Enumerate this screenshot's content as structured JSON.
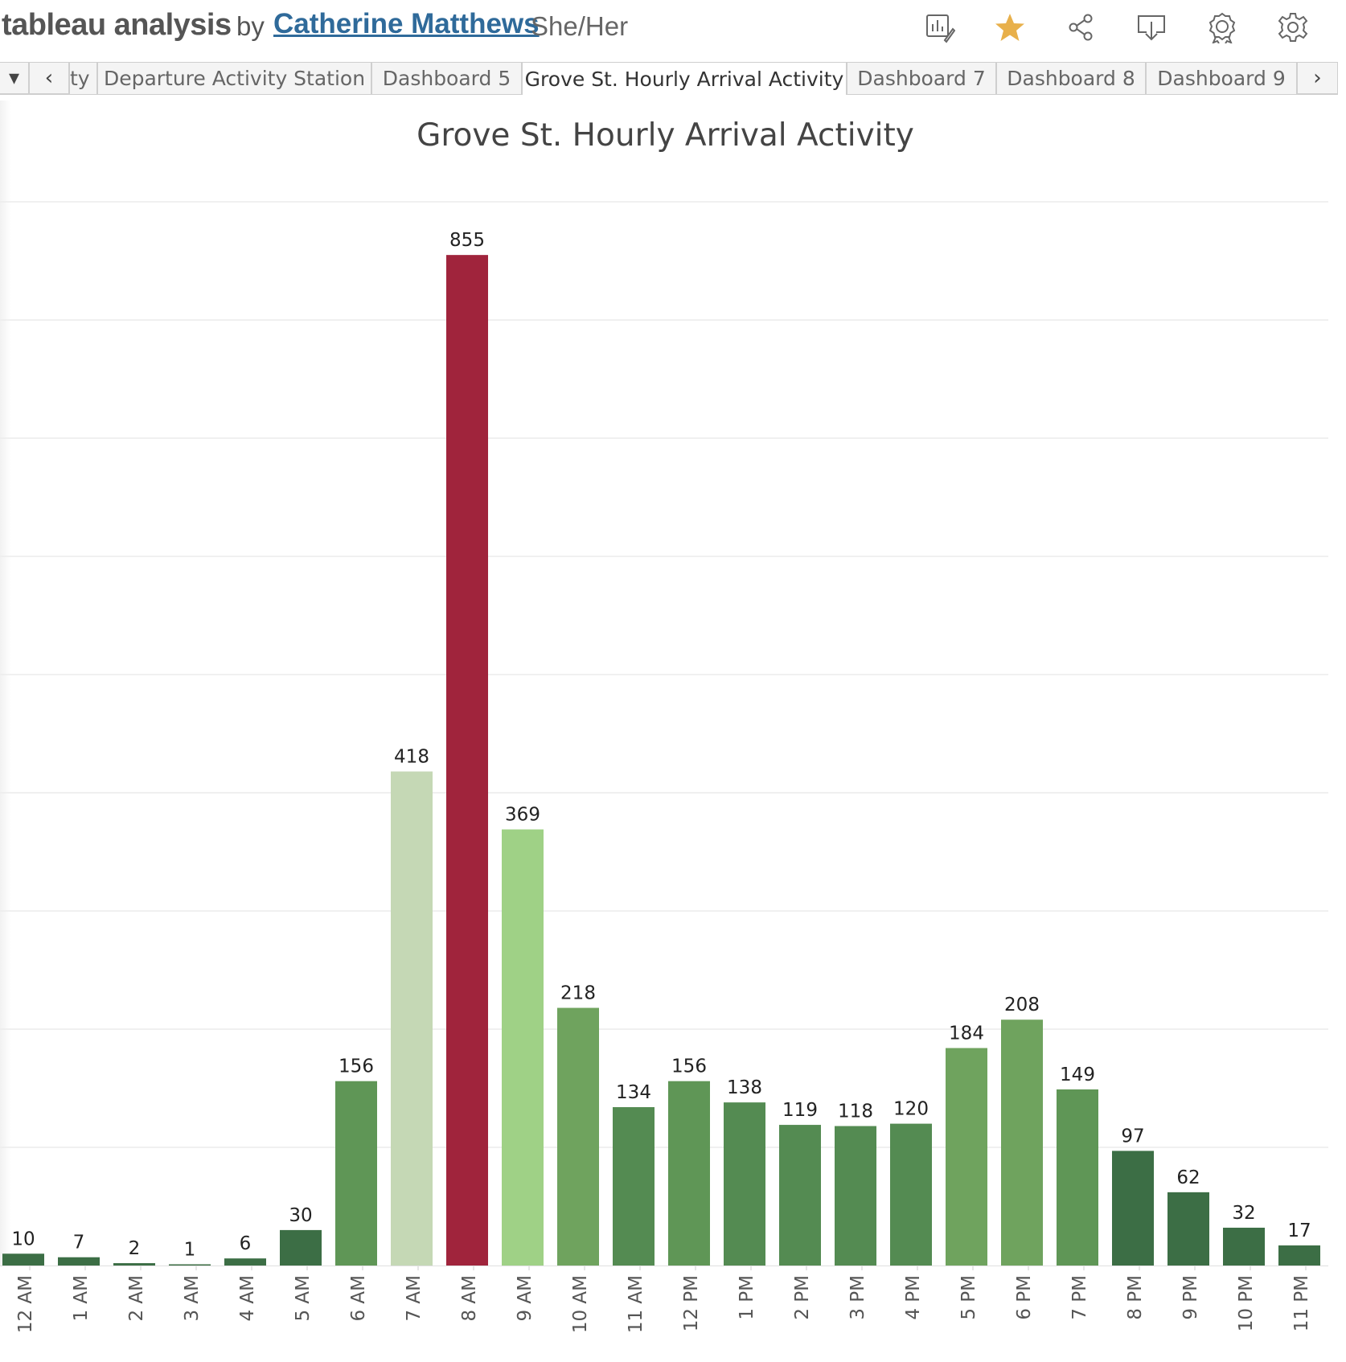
{
  "header": {
    "workbook_title": "tableau analysis",
    "by_label": "by",
    "author": "Catherine Matthews",
    "pronouns": "She/Her",
    "icons": [
      {
        "name": "edit-chart-icon"
      },
      {
        "name": "favorite-star-icon",
        "color": "#e8b04b"
      },
      {
        "name": "share-icon"
      },
      {
        "name": "download-icon"
      },
      {
        "name": "award-icon"
      },
      {
        "name": "settings-gear-icon"
      }
    ]
  },
  "tabs": {
    "items": [
      {
        "label": "ty",
        "active": false
      },
      {
        "label": "Departure Activity Station",
        "active": false
      },
      {
        "label": "Dashboard 5",
        "active": false
      },
      {
        "label": "Grove St. Hourly Arrival Activity",
        "active": true
      },
      {
        "label": "Dashboard 7",
        "active": false
      },
      {
        "label": "Dashboard 8",
        "active": false
      },
      {
        "label": "Dashboard 9",
        "active": false
      }
    ],
    "controls": {
      "menu": "▾",
      "prev": "‹",
      "next": "›"
    }
  },
  "chart_data": {
    "type": "bar",
    "title": "Grove St. Hourly Arrival Activity",
    "xlabel": "",
    "ylabel": "",
    "ylim": [
      0,
      900
    ],
    "grid": true,
    "categories": [
      "12 AM",
      "1 AM",
      "2 AM",
      "3 AM",
      "4 AM",
      "5 AM",
      "6 AM",
      "7 AM",
      "8 AM",
      "9 AM",
      "10 AM",
      "11 AM",
      "12 PM",
      "1 PM",
      "2 PM",
      "3 PM",
      "4 PM",
      "5 PM",
      "6 PM",
      "7 PM",
      "8 PM",
      "9 PM",
      "10 PM",
      "11 PM"
    ],
    "values": [
      10,
      7,
      2,
      1,
      6,
      30,
      156,
      418,
      855,
      369,
      218,
      134,
      156,
      138,
      119,
      118,
      120,
      184,
      208,
      149,
      97,
      62,
      32,
      17
    ],
    "colors": {
      "low": "#3c6e45",
      "mid": "#6fa35e",
      "high": "#c5d8b5",
      "peak": "#a0243c",
      "light": "#9fd186"
    }
  }
}
